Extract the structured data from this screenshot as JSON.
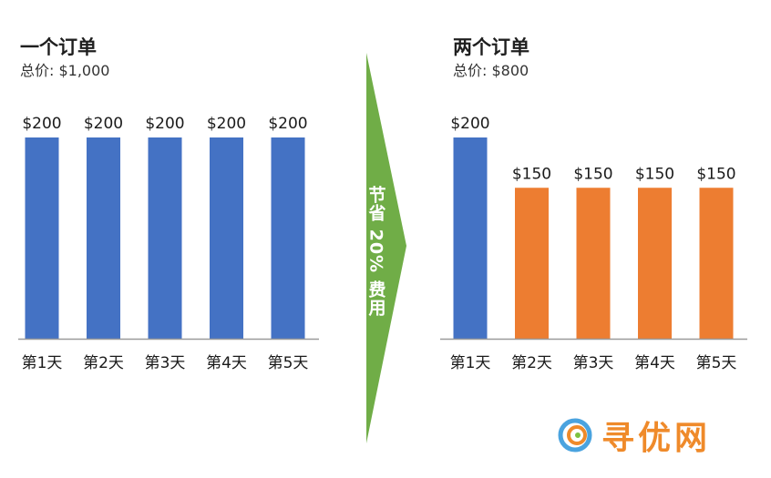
{
  "chart_data": [
    {
      "type": "bar",
      "title": "一个订单",
      "subtitle": "总价: $1,000",
      "categories": [
        "第1天",
        "第2天",
        "第3天",
        "第4天",
        "第5天"
      ],
      "values": [
        200,
        200,
        200,
        200,
        200
      ],
      "value_labels": [
        "$200",
        "$200",
        "$200",
        "$200",
        "$200"
      ],
      "colors": [
        "#4472c4",
        "#4472c4",
        "#4472c4",
        "#4472c4",
        "#4472c4"
      ],
      "ylim": [
        0,
        200
      ],
      "grid": false
    },
    {
      "type": "bar",
      "title": "两个订单",
      "subtitle": "总价: $800",
      "categories": [
        "第1天",
        "第2天",
        "第3天",
        "第4天",
        "第5天"
      ],
      "values": [
        200,
        150,
        150,
        150,
        150
      ],
      "value_labels": [
        "$200",
        "$150",
        "$150",
        "$150",
        "$150"
      ],
      "colors": [
        "#4472c4",
        "#ed7d31",
        "#ed7d31",
        "#ed7d31",
        "#ed7d31"
      ],
      "ylim": [
        0,
        200
      ],
      "grid": false
    }
  ],
  "arrow": {
    "label": "节省 20% 费用",
    "color": "#70ad47"
  },
  "logo": {
    "text": "寻优网",
    "color": "#ef8a2a"
  }
}
